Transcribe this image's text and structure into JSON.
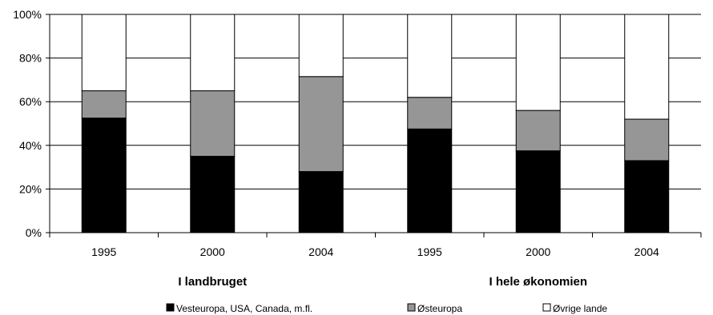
{
  "chart_data": {
    "type": "bar",
    "stacked": true,
    "groups": [
      {
        "label": "I landbruget",
        "categories": [
          "1995",
          "2000",
          "2004"
        ]
      },
      {
        "label": "I hele økonomien",
        "categories": [
          "1995",
          "2000",
          "2004"
        ]
      }
    ],
    "categories": [
      "1995",
      "2000",
      "2004",
      "1995",
      "2000",
      "2004"
    ],
    "series": [
      {
        "name": "Vesteuropa, USA, Canada, m.fl.",
        "color": "#000000",
        "values": [
          52.5,
          35,
          28,
          47.5,
          37.5,
          33
        ]
      },
      {
        "name": "Østeuropa",
        "color": "#969696",
        "values": [
          12.5,
          30,
          43.5,
          14.5,
          18.5,
          19
        ]
      },
      {
        "name": "Øvrige lande",
        "color": "#ffffff",
        "values": [
          35,
          35,
          28.5,
          38,
          44,
          48
        ]
      }
    ],
    "y_ticks": [
      "0%",
      "20%",
      "40%",
      "60%",
      "80%",
      "100%"
    ],
    "ylim": [
      0,
      100
    ],
    "grid": true,
    "legend_position": "bottom"
  }
}
